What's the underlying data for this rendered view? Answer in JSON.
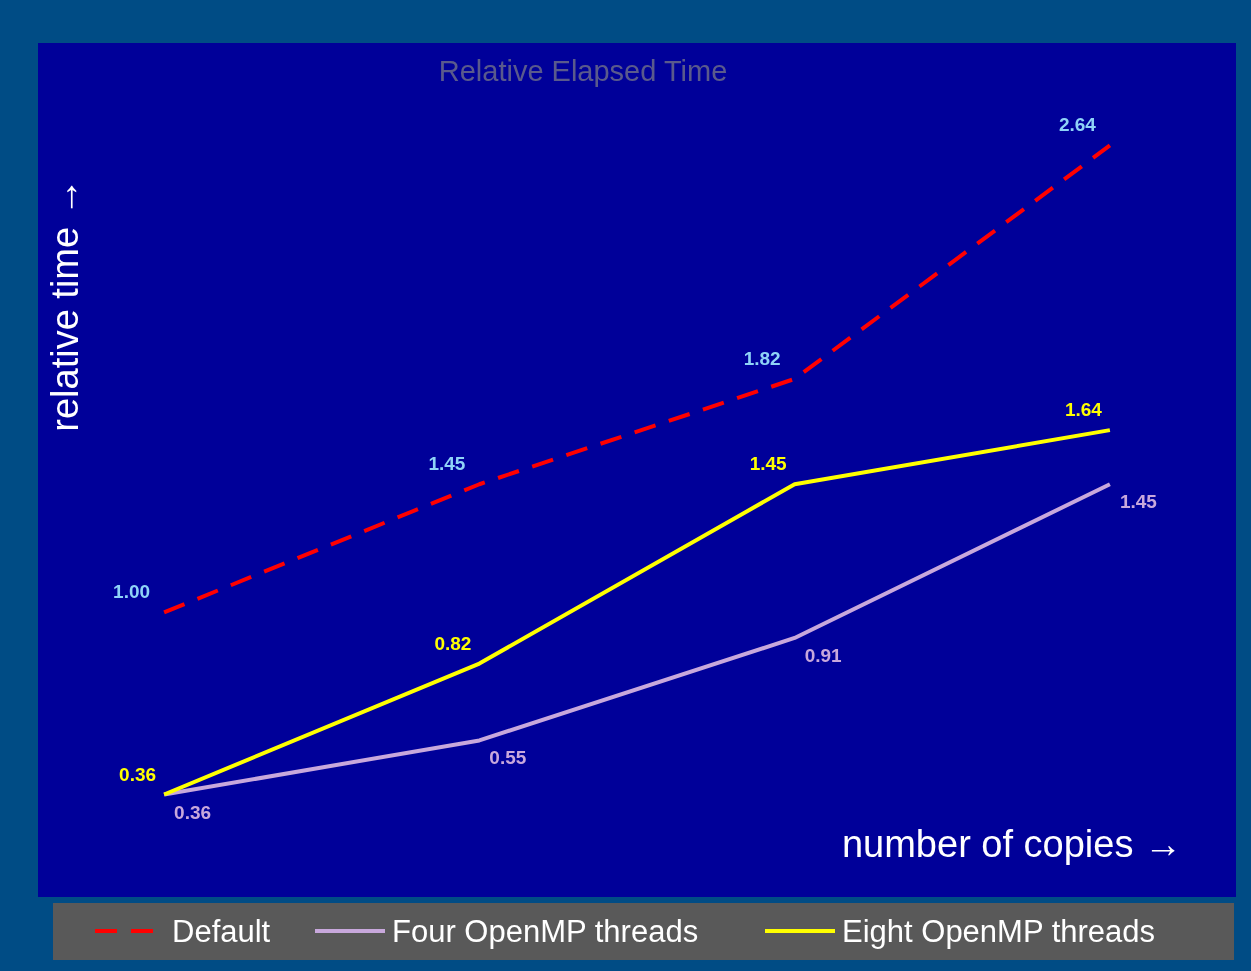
{
  "chart_data": {
    "type": "line",
    "title": "Relative Elapsed Time",
    "xlabel": "number of copies →",
    "ylabel": "relative time →",
    "categories": [
      null,
      null,
      null,
      null
    ],
    "ylim": [
      0,
      3
    ],
    "grid": false,
    "legend": "bottom",
    "marker": "none",
    "series": [
      {
        "name": "Default",
        "color": "#ff0000",
        "line_style": "dashed",
        "values": [
          1.0,
          1.45,
          1.82,
          2.64
        ],
        "value_labels": [
          "1.00",
          "1.45",
          "1.82",
          "2.64"
        ]
      },
      {
        "name": "Four OpenMP threads",
        "color": "#c8a8dc",
        "line_style": "solid",
        "values": [
          0.36,
          0.55,
          0.91,
          1.45
        ],
        "value_labels": [
          "0.36",
          "0.55",
          "0.91",
          "1.45"
        ]
      },
      {
        "name": "Eight OpenMP threads",
        "color": "#ffff00",
        "line_style": "solid",
        "values": [
          0.36,
          0.82,
          1.45,
          1.64
        ],
        "value_labels": [
          "0.36",
          "0.82",
          "1.45",
          "1.64"
        ]
      }
    ]
  }
}
